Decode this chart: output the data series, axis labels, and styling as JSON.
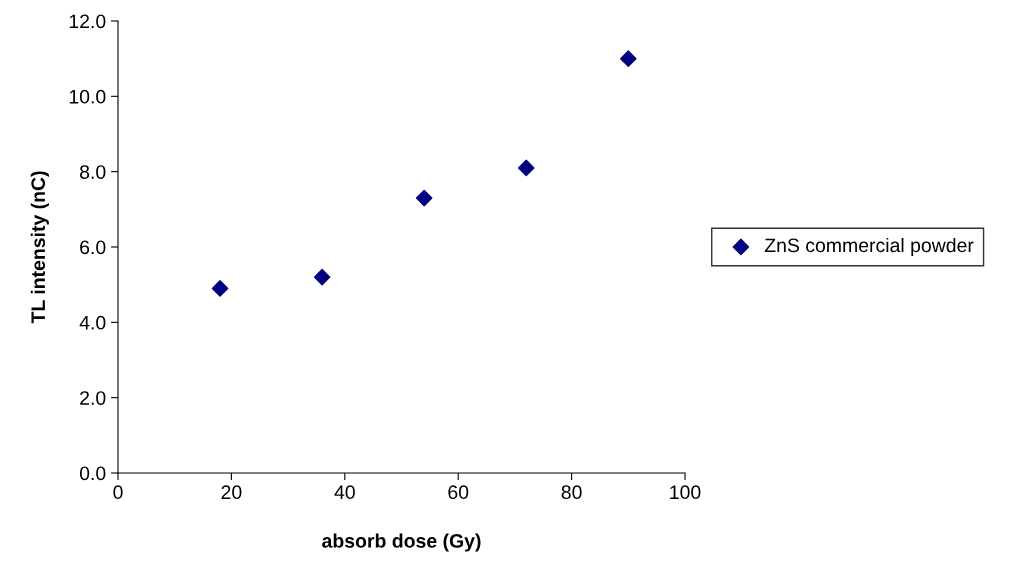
{
  "chart_data": {
    "type": "scatter",
    "xlabel": "absorb dose (Gy)",
    "ylabel": "TL intensity (nC)",
    "x": [
      18,
      36,
      54,
      72,
      90
    ],
    "series": [
      {
        "name": "ZnS commercial powder",
        "color": "#000080",
        "values": [
          4.9,
          5.2,
          7.3,
          8.1,
          11.0
        ]
      }
    ],
    "xlim": [
      0,
      100
    ],
    "xticks": [
      0,
      20,
      40,
      60,
      80,
      100
    ],
    "ylim": [
      0,
      12
    ],
    "yticks": [
      {
        "value": 0,
        "label": "0.0"
      },
      {
        "value": 2,
        "label": "2.0"
      },
      {
        "value": 4,
        "label": "4.0"
      },
      {
        "value": 6,
        "label": "6.0"
      },
      {
        "value": 8,
        "label": "8.0"
      },
      {
        "value": 10,
        "label": "10.0"
      },
      {
        "value": 12,
        "label": "12.0"
      }
    ],
    "marker": "diamond",
    "legend": "right",
    "grid": false
  }
}
